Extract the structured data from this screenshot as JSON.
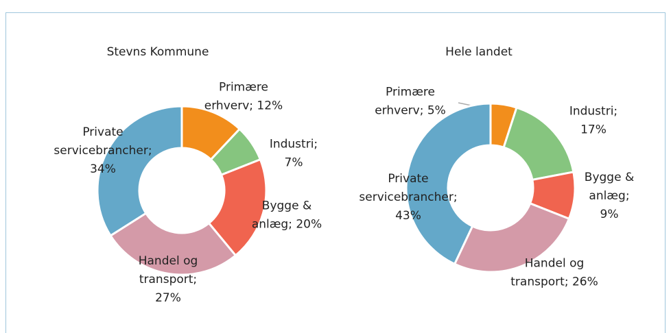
{
  "chart_data": [
    {
      "type": "donut",
      "title": "Stevns Kommune",
      "values": [
        12,
        7,
        20,
        27,
        34
      ],
      "value_labels": [
        "Primære erhverv; 12%",
        "Industri; 7%",
        "Bygge & anlæg; 20%",
        "Handel og transport; 27%",
        "Private servicebrancher; 34%"
      ],
      "colors": [
        "#f28e1c",
        "#86c57f",
        "#f0644f",
        "#d49aa8",
        "#64a8c9"
      ]
    },
    {
      "type": "donut",
      "title": "Hele landet",
      "values": [
        5,
        17,
        9,
        26,
        43
      ],
      "value_labels": [
        "Primære erhverv; 5%",
        "Industri; 17%",
        "Bygge & anlæg; 9%",
        "Handel og transport; 26%",
        "Private servicebrancher; 43%"
      ],
      "colors": [
        "#f28e1c",
        "#86c57f",
        "#f0644f",
        "#d49aa8",
        "#64a8c9"
      ]
    }
  ]
}
